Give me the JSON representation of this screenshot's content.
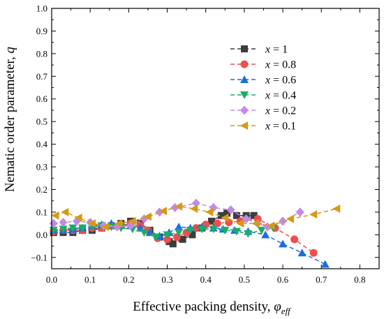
{
  "chart_data": {
    "type": "line",
    "xlabel": "Effective packing density, ",
    "xlabel_symbol": "φ",
    "xlabel_sub": "eff",
    "ylabel": "Nematic order parameter, ",
    "ylabel_symbol": "q",
    "xlim": [
      0.0,
      0.85
    ],
    "ylim": [
      -0.15,
      1.0
    ],
    "xticks": [
      "0.0",
      "0.1",
      "0.2",
      "0.3",
      "0.4",
      "0.5",
      "0.6",
      "0.7",
      "0.8"
    ],
    "yticks": [
      "-0.1",
      "0.0",
      "0.1",
      "0.2",
      "0.3",
      "0.4",
      "0.5",
      "0.6",
      "0.7",
      "0.8",
      "0.9",
      "1.0"
    ],
    "legend_position": "upper-right",
    "series": [
      {
        "name": "x = 1",
        "var": "x",
        "val": " = 1",
        "color": "#3d3d3d",
        "marker": "square",
        "x": [
          0.005,
          0.03,
          0.055,
          0.08,
          0.105,
          0.13,
          0.155,
          0.18,
          0.205,
          0.23,
          0.255,
          0.28,
          0.305,
          0.315,
          0.34,
          0.365,
          0.39,
          0.415,
          0.44,
          0.455,
          0.48,
          0.505,
          0.525
        ],
        "y": [
          0.01,
          0.01,
          0.01,
          0.02,
          0.02,
          0.03,
          0.04,
          0.05,
          0.06,
          0.05,
          0.02,
          -0.01,
          -0.03,
          -0.04,
          -0.02,
          0.0,
          0.03,
          0.06,
          0.085,
          0.095,
          0.085,
          0.085,
          0.085
        ]
      },
      {
        "name": "x = 0.8",
        "var": "x",
        "val": " = 0.8",
        "color": "#f04d4d",
        "marker": "circle",
        "x": [
          0.005,
          0.03,
          0.055,
          0.08,
          0.105,
          0.13,
          0.155,
          0.18,
          0.205,
          0.23,
          0.25,
          0.275,
          0.3,
          0.325,
          0.35,
          0.375,
          0.4,
          0.43,
          0.46,
          0.49,
          0.535,
          0.58,
          0.63,
          0.68
        ],
        "y": [
          0.015,
          0.02,
          0.02,
          0.02,
          0.03,
          0.03,
          0.04,
          0.04,
          0.05,
          0.04,
          0.02,
          -0.015,
          -0.02,
          -0.01,
          0.01,
          0.03,
          0.045,
          0.05,
          0.055,
          0.06,
          0.07,
          0.03,
          -0.02,
          -0.08
        ]
      },
      {
        "name": "x = 0.6",
        "var": "x",
        "val": " = 0.6",
        "color": "#1a6ee0",
        "marker": "triangle-up",
        "x": [
          0.005,
          0.03,
          0.055,
          0.08,
          0.105,
          0.13,
          0.155,
          0.18,
          0.205,
          0.23,
          0.255,
          0.28,
          0.305,
          0.33,
          0.36,
          0.39,
          0.42,
          0.445,
          0.475,
          0.51,
          0.555,
          0.6,
          0.65,
          0.71
        ],
        "y": [
          0.02,
          0.02,
          0.025,
          0.03,
          0.04,
          0.045,
          0.05,
          0.045,
          0.04,
          0.03,
          0.01,
          -0.005,
          0.01,
          0.035,
          0.03,
          0.035,
          0.03,
          0.025,
          0.02,
          0.015,
          0.0,
          -0.04,
          -0.08,
          -0.13
        ]
      },
      {
        "name": "x = 0.4",
        "var": "x",
        "val": " = 0.4",
        "color": "#1aad66",
        "marker": "triangle-down",
        "x": [
          0.005,
          0.03,
          0.055,
          0.08,
          0.105,
          0.13,
          0.155,
          0.18,
          0.21,
          0.24,
          0.27,
          0.3,
          0.33,
          0.36,
          0.39,
          0.42,
          0.45,
          0.48,
          0.51,
          0.545,
          0.575
        ],
        "y": [
          0.02,
          0.025,
          0.03,
          0.03,
          0.035,
          0.04,
          0.035,
          0.03,
          0.025,
          0.01,
          -0.01,
          0.0,
          0.01,
          0.02,
          0.025,
          0.025,
          0.02,
          0.015,
          0.005,
          0.02,
          0.03
        ]
      },
      {
        "name": "x = 0.2",
        "var": "x",
        "val": " = 0.2",
        "color": "#c389e6",
        "marker": "diamond",
        "x": [
          0.005,
          0.03,
          0.065,
          0.1,
          0.135,
          0.17,
          0.205,
          0.24,
          0.28,
          0.32,
          0.375,
          0.42,
          0.465,
          0.505,
          0.535,
          0.56,
          0.6,
          0.645
        ],
        "y": [
          0.05,
          0.055,
          0.06,
          0.055,
          0.04,
          0.035,
          0.04,
          0.07,
          0.1,
          0.12,
          0.14,
          0.12,
          0.11,
          0.07,
          0.05,
          0.035,
          0.06,
          0.1
        ]
      },
      {
        "name": "x = 0.1",
        "var": "x",
        "val": " = 0.1",
        "color": "#d69a14",
        "marker": "triangle-left",
        "x": [
          0.01,
          0.035,
          0.07,
          0.105,
          0.14,
          0.175,
          0.21,
          0.25,
          0.29,
          0.33,
          0.37,
          0.41,
          0.45,
          0.49,
          0.53,
          0.57,
          0.62,
          0.68,
          0.74
        ],
        "y": [
          0.085,
          0.1,
          0.075,
          0.05,
          0.035,
          0.05,
          0.06,
          0.08,
          0.105,
          0.125,
          0.115,
          0.1,
          0.075,
          0.05,
          0.05,
          0.04,
          0.07,
          0.09,
          0.115
        ]
      }
    ]
  }
}
